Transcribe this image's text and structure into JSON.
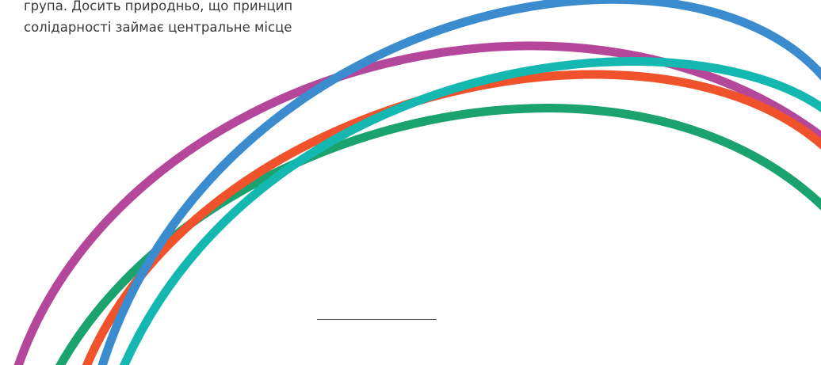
{
  "text": {
    "lines": [
      "група. Досить природньо, що принцип",
      "солідарності займає центральне місце"
    ]
  }
}
